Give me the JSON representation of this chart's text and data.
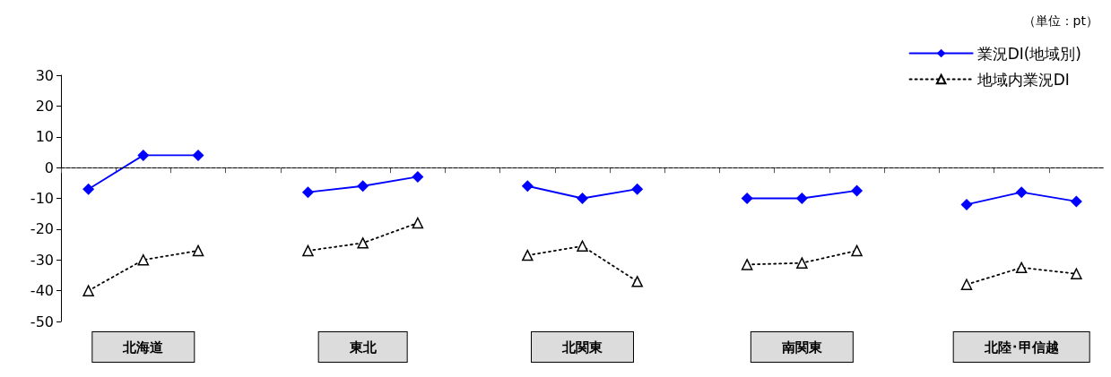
{
  "chart_data": {
    "type": "line",
    "categories": [
      null,
      "北海道",
      null,
      null,
      null,
      "東北",
      null,
      null,
      null,
      "北関東",
      null,
      null,
      null,
      "南関東",
      null,
      null,
      null,
      "北陸･甲信越",
      null
    ],
    "series": [
      {
        "name": "業況DI(地域別)",
        "color": "#0000ff",
        "marker": "diamond",
        "line_style": "solid",
        "values": [
          -7,
          4,
          4,
          null,
          -8,
          -6,
          -3,
          null,
          -6,
          -10,
          -7,
          null,
          -10,
          -10,
          -7.5,
          null,
          -12,
          -8,
          -11
        ]
      },
      {
        "name": "地域内業況DI",
        "color": "#000000",
        "marker": "triangle",
        "line_style": "dotted",
        "values": [
          -40,
          -30,
          -27,
          null,
          -27,
          -24.5,
          -18,
          null,
          -28.5,
          -25.5,
          -37,
          null,
          -31.5,
          -31,
          -27,
          null,
          -38,
          -32.5,
          -34.5
        ]
      }
    ],
    "ylim": [
      -50,
      30
    ],
    "yticks": [
      -50,
      -40,
      -30,
      -20,
      -10,
      0,
      10,
      20,
      30
    ],
    "ref_lines": [
      {
        "axis": "y",
        "value": 0,
        "line_style": "dashed",
        "color": "#000000"
      }
    ],
    "annotations": [
      "（単位：pt）"
    ],
    "legend": "top right",
    "grid": false
  }
}
